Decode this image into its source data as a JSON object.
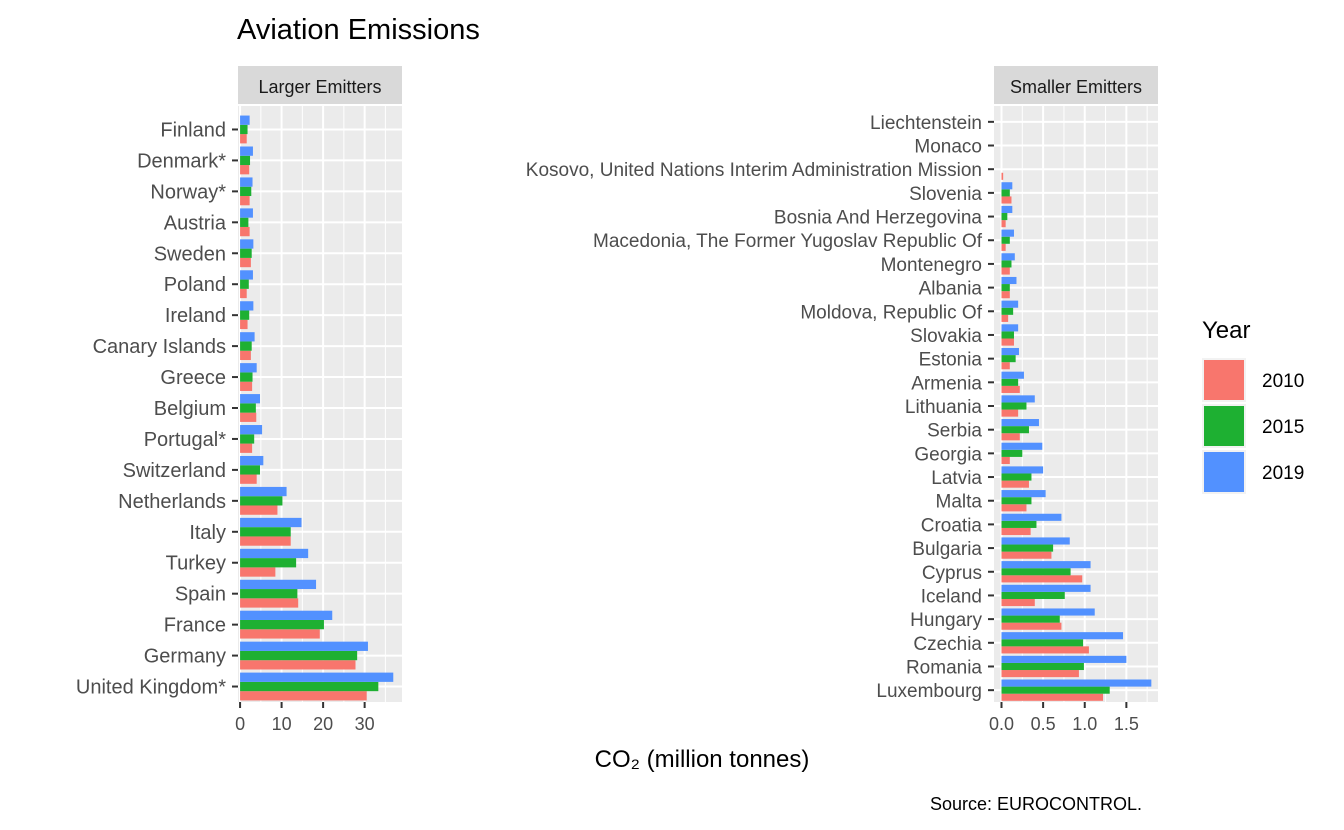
{
  "chart_data": {
    "type": "bar",
    "title": "Aviation Emissions",
    "xlabel": "CO₂  (million tonnes)",
    "caption": "Source: EUROCONTROL.",
    "legend": {
      "title": "Year",
      "position": "right",
      "series": [
        "2010",
        "2015",
        "2019"
      ]
    },
    "colors": {
      "2010": "#F8766D",
      "2015": "#1EB032",
      "2019": "#5291FF"
    },
    "grid": true,
    "orientation": "horizontal",
    "panels": [
      {
        "strip": "Larger Emitters",
        "xlim": [
          -0.5,
          39
        ],
        "xticks": [
          0,
          10,
          20,
          30
        ],
        "xticklabels": [
          "0",
          "10",
          "20",
          "30"
        ],
        "categories": [
          "Finland",
          "Denmark*",
          "Norway*",
          "Austria",
          "Sweden",
          "Poland",
          "Ireland",
          "Canary Islands",
          "Greece",
          "Belgium",
          "Portugal*",
          "Switzerland",
          "Netherlands",
          "Italy",
          "Turkey",
          "Spain",
          "France",
          "Germany",
          "United Kingdom*"
        ],
        "series": [
          {
            "name": "2010",
            "values": [
              1.6,
              2.2,
              2.3,
              2.3,
              2.6,
              1.6,
              1.8,
              2.6,
              2.9,
              3.9,
              2.9,
              4.0,
              9.0,
              12.2,
              8.5,
              14.0,
              19.2,
              27.8,
              30.5
            ]
          },
          {
            "name": "2015",
            "values": [
              1.8,
              2.4,
              2.7,
              2.0,
              2.8,
              2.1,
              2.2,
              2.8,
              3.0,
              3.8,
              3.4,
              4.8,
              10.2,
              12.2,
              13.5,
              13.8,
              20.2,
              28.2,
              33.3
            ]
          },
          {
            "name": "2019",
            "values": [
              2.3,
              3.1,
              3.0,
              3.1,
              3.2,
              3.1,
              3.2,
              3.5,
              4.0,
              4.8,
              5.3,
              5.6,
              11.2,
              14.8,
              16.4,
              18.3,
              22.2,
              30.8,
              36.9
            ]
          }
        ]
      },
      {
        "strip": "Smaller Emitters",
        "xlim": [
          -0.09,
          1.88
        ],
        "xticks": [
          0.0,
          0.5,
          1.0,
          1.5
        ],
        "xticklabels": [
          "0.0",
          "0.5",
          "1.0",
          "1.5"
        ],
        "categories": [
          "Liechtenstein",
          "Monaco",
          "Kosovo, United Nations Interim Administration Mission",
          "Slovenia",
          "Bosnia And Herzegovina",
          "Macedonia, The Former Yugoslav Republic Of",
          "Montenegro",
          "Albania",
          "Moldova, Republic Of",
          "Slovakia",
          "Estonia",
          "Armenia",
          "Lithuania",
          "Serbia",
          "Georgia",
          "Latvia",
          "Malta",
          "Croatia",
          "Bulgaria",
          "Cyprus",
          "Iceland",
          "Hungary",
          "Czechia",
          "Romania",
          "Luxembourg"
        ],
        "series": [
          {
            "name": "2010",
            "values": [
              0.0,
              0.0,
              0.02,
              0.12,
              0.05,
              0.05,
              0.1,
              0.1,
              0.08,
              0.15,
              0.1,
              0.22,
              0.2,
              0.22,
              0.1,
              0.33,
              0.3,
              0.35,
              0.6,
              0.97,
              0.4,
              0.72,
              1.05,
              0.93,
              1.22
            ]
          },
          {
            "name": "2015",
            "values": [
              0.0,
              0.0,
              0.0,
              0.1,
              0.07,
              0.1,
              0.12,
              0.1,
              0.14,
              0.15,
              0.17,
              0.2,
              0.3,
              0.33,
              0.25,
              0.36,
              0.36,
              0.42,
              0.62,
              0.83,
              0.76,
              0.7,
              0.98,
              0.99,
              1.3
            ]
          },
          {
            "name": "2019",
            "values": [
              0.0,
              0.0,
              0.0,
              0.13,
              0.13,
              0.15,
              0.16,
              0.18,
              0.2,
              0.2,
              0.21,
              0.27,
              0.4,
              0.45,
              0.49,
              0.5,
              0.53,
              0.72,
              0.82,
              1.07,
              1.07,
              1.12,
              1.46,
              1.5,
              1.8
            ]
          }
        ]
      }
    ]
  }
}
